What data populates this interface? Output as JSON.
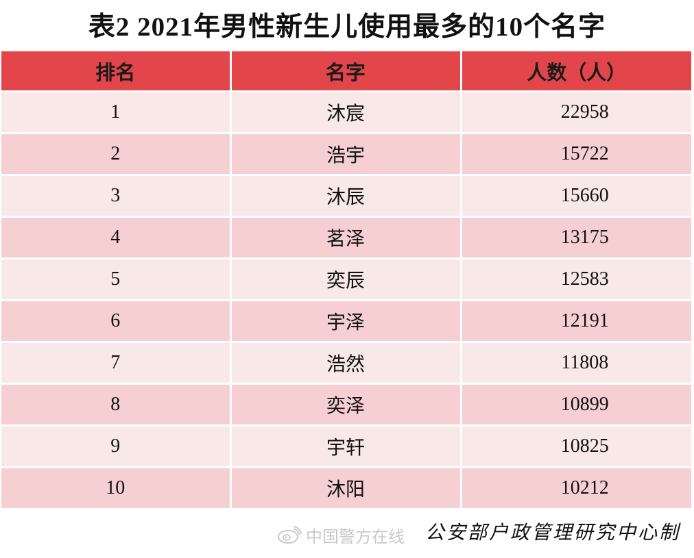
{
  "title": "表2  2021年男性新生儿使用最多的10个名字",
  "table": {
    "headers": [
      "排名",
      "名字",
      "人数（人）"
    ],
    "rows": [
      {
        "rank": "1",
        "name": "沐宸",
        "count": "22958"
      },
      {
        "rank": "2",
        "name": "浩宇",
        "count": "15722"
      },
      {
        "rank": "3",
        "name": "沐辰",
        "count": "15660"
      },
      {
        "rank": "4",
        "name": "茗泽",
        "count": "13175"
      },
      {
        "rank": "5",
        "name": "奕辰",
        "count": "12583"
      },
      {
        "rank": "6",
        "name": "宇泽",
        "count": "12191"
      },
      {
        "rank": "7",
        "name": "浩然",
        "count": "11808"
      },
      {
        "rank": "8",
        "name": "奕泽",
        "count": "10899"
      },
      {
        "rank": "9",
        "name": "宇轩",
        "count": "10825"
      },
      {
        "rank": "10",
        "name": "沐阳",
        "count": "10212"
      }
    ]
  },
  "colors": {
    "header_bg": "#e2464b",
    "row_light": "#f8e8e8",
    "row_dark": "#f6cfd3"
  },
  "watermark": {
    "icon": "weibo-icon",
    "text": "中国警方在线"
  },
  "source": "公安部户政管理研究中心制"
}
